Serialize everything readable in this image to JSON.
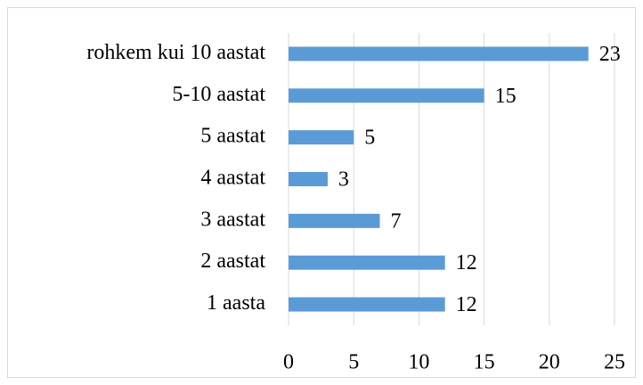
{
  "chart_data": {
    "type": "bar",
    "orientation": "horizontal",
    "categories": [
      "rohkem kui 10 aastat",
      "5-10 aastat",
      "5 aastat",
      "4 aastat",
      "3 aastat",
      "2 aastat",
      "1 aasta"
    ],
    "values": [
      23,
      15,
      5,
      3,
      7,
      12,
      12
    ],
    "color": "#5b9bd5",
    "xlim": [
      0,
      25
    ],
    "xticks": [
      0,
      5,
      10,
      15,
      20,
      25
    ],
    "grid": true
  }
}
